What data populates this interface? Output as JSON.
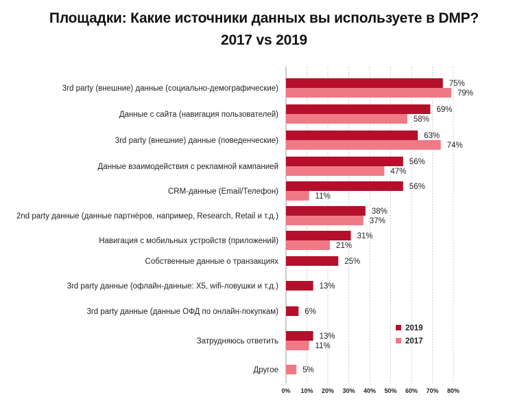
{
  "title_line1": "Площадки: Какие источники данных вы используете в DMP?",
  "title_line2": "2017 vs 2019",
  "chart_data": {
    "type": "bar",
    "orientation": "horizontal",
    "xlim": [
      0,
      80
    ],
    "ticks": [
      0,
      10,
      20,
      30,
      40,
      50,
      60,
      70,
      80
    ],
    "tick_labels": [
      "0%",
      "10%",
      "20%",
      "30%",
      "40%",
      "50%",
      "60%",
      "70%",
      "80%"
    ],
    "grid": "vertical dashed",
    "legend_position": "bottom-right",
    "colors": {
      "2019": "#b5102b",
      "2017": "#ef7a85"
    },
    "categories": [
      "3rd party (внешние) данные (социально-демографические)",
      "Данные с сайта (навигация пользователей)",
      "3rd party (внешние) данные (поведенческие)",
      "Данные взаимодействия с рекламной кампанией",
      "CRM-данные (Email/Телефон)",
      "2nd party данные (данные партнёров, например, Research, Retail и т.д.)",
      "Навигация с мобильных устройств (приложений)",
      "Собственные данные о транзакциях",
      "3rd party данные (офлайн-данные: Х5, wifi-ловушки и т.д.)",
      "3rd party данные (данные ОФД по онлайн-покупкам)",
      "Затрудняюсь ответить",
      "Другое"
    ],
    "series": [
      {
        "name": "2019",
        "values": [
          75,
          69,
          63,
          56,
          56,
          38,
          31,
          25,
          13,
          6,
          13,
          null
        ],
        "labels": [
          "75%",
          "69%",
          "63%",
          "56%",
          "56%",
          "38%",
          "31%",
          "25%",
          "13%",
          "6%",
          "13%",
          ""
        ]
      },
      {
        "name": "2017",
        "values": [
          79,
          58,
          74,
          47,
          11,
          37,
          21,
          null,
          null,
          null,
          11,
          5
        ],
        "labels": [
          "79%",
          "58%",
          "74%",
          "47%",
          "11%",
          "37%",
          "21%",
          "",
          "",
          "",
          "11%",
          "5%"
        ]
      }
    ]
  }
}
